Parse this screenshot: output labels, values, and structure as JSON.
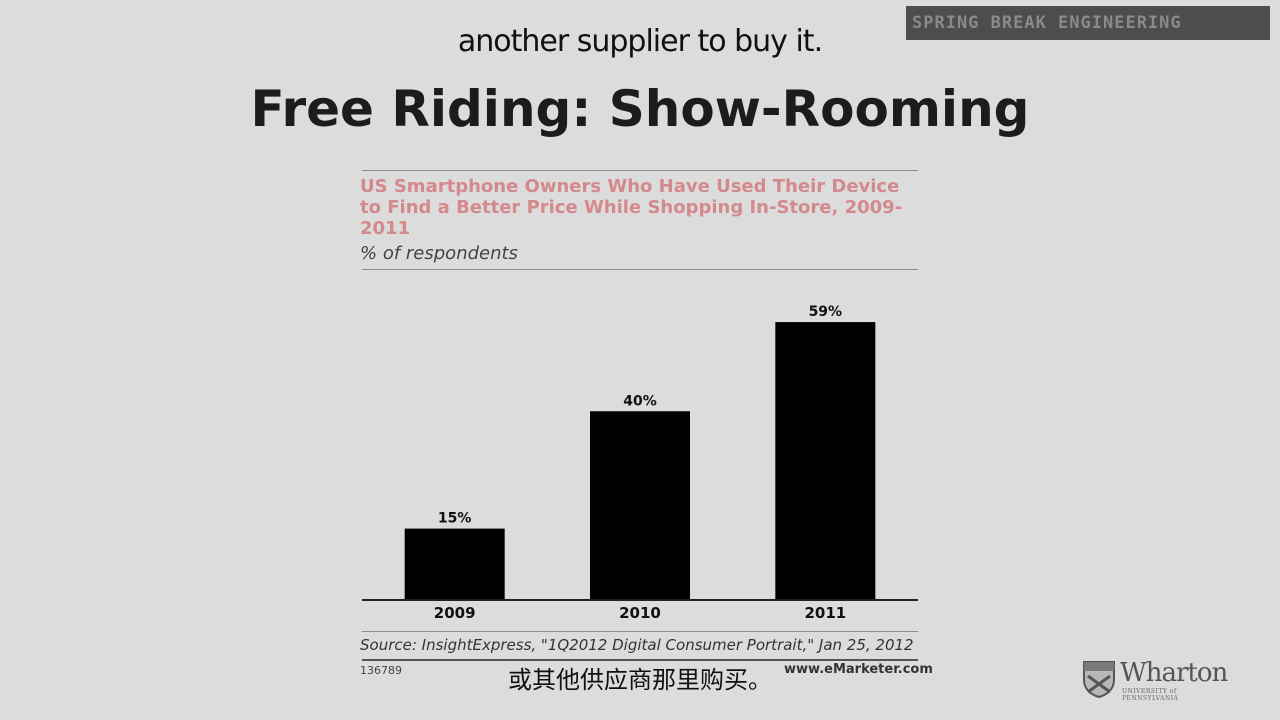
{
  "banner": {
    "text": "SPRING BREAK ENGINEERING"
  },
  "subtitles": {
    "top": "another supplier to buy it.",
    "bottom": "或其他供应商那里购买。"
  },
  "slide": {
    "title": "Free Riding: Show-Rooming"
  },
  "chart_data": {
    "type": "bar",
    "title": "US Smartphone Owners Who Have Used Their Device to Find a Better Price While Shopping In-Store, 2009-2011",
    "subtitle": "% of respondents",
    "categories": [
      "2009",
      "2010",
      "2011"
    ],
    "values": [
      15,
      40,
      59
    ],
    "value_labels": [
      "15%",
      "40%",
      "59%"
    ],
    "ylim": [
      0,
      62
    ],
    "grid": false,
    "legend": "none",
    "bar_color": "#000000",
    "title_color": "#d4898c",
    "source": "Source: InsightExpress, \"1Q2012 Digital Consumer Portrait,\" Jan 25, 2012",
    "chart_id": "136789",
    "publisher": "www.eMarketer.com"
  },
  "logo": {
    "name": "Wharton",
    "subtitle": "UNIVERSITY of PENNSYLVANIA",
    "icon": "penn-shield-icon"
  }
}
